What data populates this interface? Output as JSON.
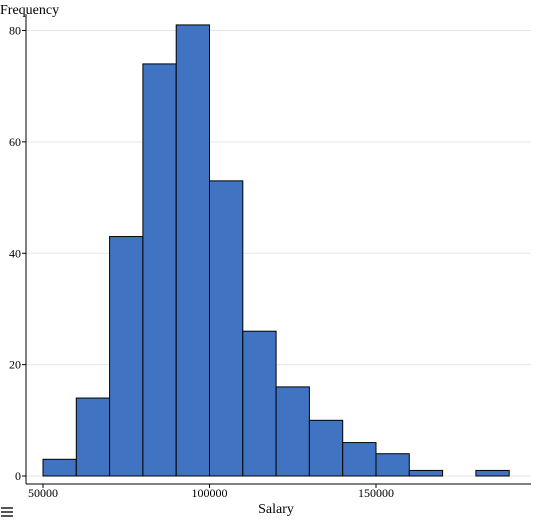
{
  "chart_data": {
    "type": "bar",
    "subtype": "histogram",
    "ylabel": "Frequency",
    "xlabel": "Salary",
    "bin_edges": [
      50000,
      60000,
      70000,
      80000,
      90000,
      100000,
      110000,
      120000,
      130000,
      140000,
      150000,
      160000,
      170000,
      180000,
      190000
    ],
    "values": [
      3,
      14,
      43,
      74,
      81,
      53,
      26,
      16,
      10,
      6,
      4,
      1,
      0,
      1
    ],
    "xlim": [
      50000,
      190000
    ],
    "ylim": [
      0,
      80
    ],
    "x_ticks": [
      "50000",
      "100000",
      "150000"
    ],
    "y_ticks": [
      "0",
      "20",
      "40",
      "60",
      "80"
    ],
    "grid": true,
    "legend": "none",
    "colors": {
      "bar_fill": "#4074c3",
      "bar_edge": "#000000",
      "grid": "#e6e6e6",
      "axis": "#000000"
    }
  },
  "ui": {
    "menu_icon": "hamburger-menu-icon"
  }
}
